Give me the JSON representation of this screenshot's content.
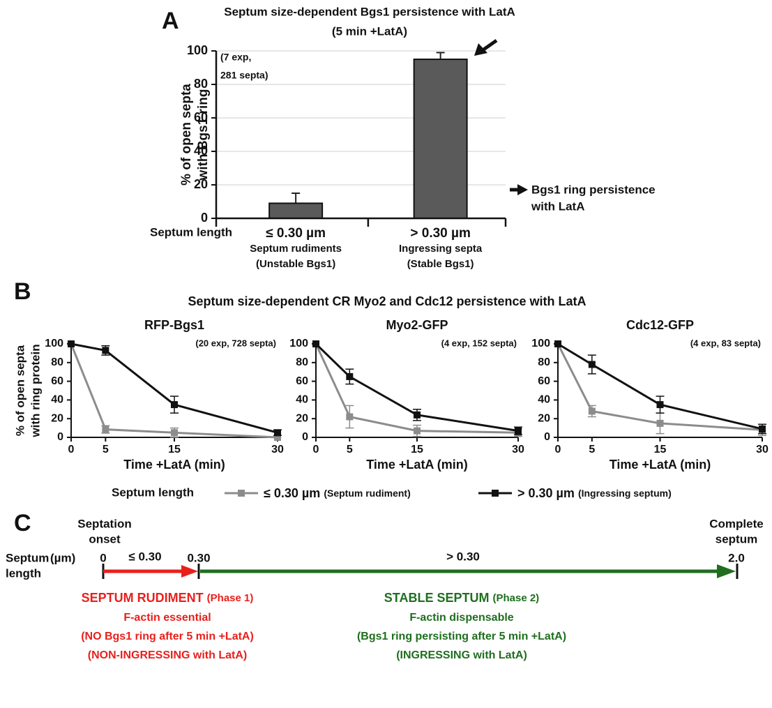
{
  "chart_data": [
    {
      "type": "bar",
      "panel": "A",
      "title": "Septum size-dependent Bgs1 persistence with LatA",
      "subtitle": "(5 min +LatA)",
      "ylabel": [
        "% of open septa",
        "with Bgs1 ring"
      ],
      "xlabel": "Septum length",
      "categories": [
        "≤ 0.30 µm",
        "> 0.30 µm"
      ],
      "category_notes": [
        [
          "Septum rudiments",
          "(Unstable Bgs1)"
        ],
        [
          "Ingressing septa",
          "(Stable Bgs1)"
        ]
      ],
      "values": [
        9,
        95
      ],
      "errors": [
        6,
        4
      ],
      "color": "#5a5a5a",
      "ylim": [
        0,
        100
      ],
      "yticks": [
        0,
        20,
        40,
        60,
        80,
        100
      ],
      "grid": true,
      "sample_note": [
        "(7 exp,",
        "281 septa)"
      ],
      "callout": [
        "Bgs1 ring persistence",
        "with LatA"
      ]
    },
    {
      "type": "line",
      "title": "RFP-Bgs1",
      "note": "(20 exp, 728 septa)",
      "ylabel": [
        "% of open septa",
        "with ring protein"
      ],
      "xlabel": "Time +LatA (min)",
      "x": [
        0,
        5,
        15,
        30
      ],
      "xlim": [
        0,
        30
      ],
      "xticks": [
        0,
        5,
        15,
        30
      ],
      "ylim": [
        0,
        100
      ],
      "yticks": [
        0,
        20,
        40,
        60,
        80,
        100
      ],
      "series": [
        {
          "color": "#8c8c8c",
          "values": [
            100,
            8.5,
            5,
            0
          ],
          "errors": [
            null,
            4,
            5,
            null
          ]
        },
        {
          "color": "#111111",
          "values": [
            100,
            93,
            35,
            5
          ],
          "errors": [
            null,
            5,
            9,
            3
          ]
        }
      ]
    },
    {
      "type": "line",
      "title": "Myo2-GFP",
      "note": "(4 exp, 152 septa)",
      "xlabel": "Time +LatA (min)",
      "x": [
        0,
        5,
        15,
        30
      ],
      "xlim": [
        0,
        30
      ],
      "xticks": [
        0,
        5,
        15,
        30
      ],
      "ylim": [
        0,
        100
      ],
      "yticks": [
        0,
        20,
        40,
        60,
        80,
        100
      ],
      "series": [
        {
          "color": "#8c8c8c",
          "values": [
            100,
            22,
            7,
            5
          ],
          "errors": [
            null,
            12,
            6,
            4
          ]
        },
        {
          "color": "#111111",
          "values": [
            100,
            65,
            24,
            7
          ],
          "errors": [
            null,
            8,
            6,
            4
          ]
        }
      ]
    },
    {
      "type": "line",
      "title": "Cdc12-GFP",
      "note": "(4 exp, 83 septa)",
      "xlabel": "Time +LatA (min)",
      "x": [
        0,
        5,
        15,
        30
      ],
      "xlim": [
        0,
        30
      ],
      "xticks": [
        0,
        5,
        15,
        30
      ],
      "ylim": [
        0,
        100
      ],
      "yticks": [
        0,
        20,
        40,
        60,
        80,
        100
      ],
      "series": [
        {
          "color": "#8c8c8c",
          "values": [
            100,
            28,
            15,
            8
          ],
          "errors": [
            null,
            6,
            11,
            6
          ]
        },
        {
          "color": "#111111",
          "values": [
            100,
            78,
            35,
            9
          ],
          "errors": [
            null,
            10,
            9,
            5
          ]
        }
      ]
    }
  ],
  "panel_b": {
    "label": "B",
    "title": "Septum size-dependent CR Myo2 and Cdc12 persistence with LatA",
    "legend": {
      "title": "Septum length",
      "entries": [
        {
          "name": "≤ 0.30 µm",
          "note": "(Septum rudiment)",
          "color": "#8c8c8c"
        },
        {
          "name": "> 0.30 µm",
          "note": "(Ingressing septum)",
          "color": "#111111"
        }
      ]
    }
  },
  "panel_c": {
    "label": "C",
    "start_heading": [
      "Septation",
      "onset"
    ],
    "end_heading": [
      "Complete",
      "septum"
    ],
    "axis_label": [
      "Septum",
      "length"
    ],
    "unit": "(µm)",
    "ticks": [
      "0",
      "0.30",
      "2.0"
    ],
    "segments": [
      {
        "label": "≤ 0.30",
        "title": "SEPTUM RUDIMENT",
        "phase": "(Phase 1)",
        "lines": [
          "F-actin essential",
          "(NO Bgs1 ring after 5 min +LatA)",
          "(NON-INGRESSING with LatA)"
        ]
      },
      {
        "label": "> 0.30",
        "title": "STABLE SEPTUM",
        "phase": "(Phase 2)",
        "lines": [
          "F-actin dispensable",
          "(Bgs1 ring persisting after 5 min +LatA)",
          "(INGRESSING with LatA)"
        ]
      }
    ]
  }
}
